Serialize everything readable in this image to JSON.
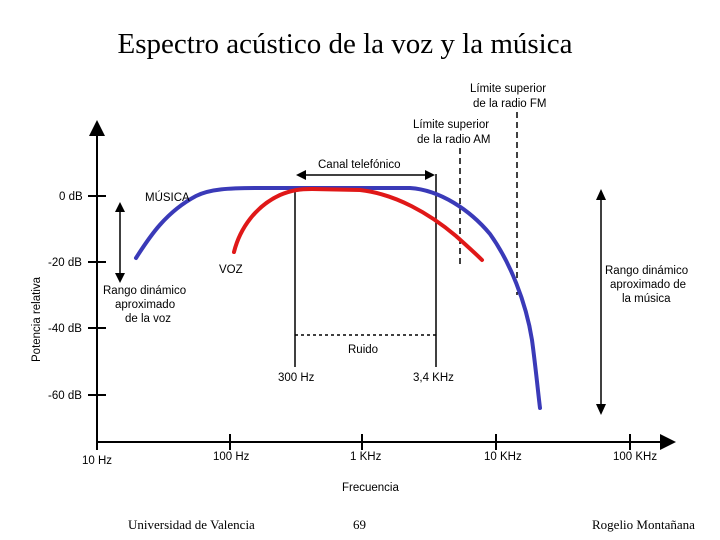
{
  "title": "Espectro acústico de la voz y la música",
  "y_axis_label": "Potencia relativa",
  "x_axis_label": "Frecuencia",
  "y_ticks": [
    "0 dB",
    "-20 dB",
    "-40 dB",
    "-60 dB"
  ],
  "x_ticks": [
    "10 Hz",
    "100 Hz",
    "1 KHz",
    "10 KHz",
    "100 KHz"
  ],
  "annotations": {
    "fm_limit_line1": "Límite superior",
    "fm_limit_line2": "de la radio FM",
    "am_limit_line1": "Límite superior",
    "am_limit_line2": "de la radio AM",
    "telephone_channel": "Canal telefónico",
    "hz300": "300 Hz",
    "khz34": "3,4 KHz",
    "noise": "Ruido",
    "music": "MÚSICA",
    "voice": "VOZ",
    "voice_range_line1": "Rango dinámico",
    "voice_range_line2": "aproximado",
    "voice_range_line3": "de la voz",
    "music_range_line1": "Rango dinámico",
    "music_range_line2": "aproximado de",
    "music_range_line3": "la música"
  },
  "colors": {
    "music": "#3a3ab8",
    "voice": "#e01818"
  },
  "footer": {
    "left": "Universidad de Valencia",
    "center": "69",
    "right": "Rogelio Montañana"
  }
}
